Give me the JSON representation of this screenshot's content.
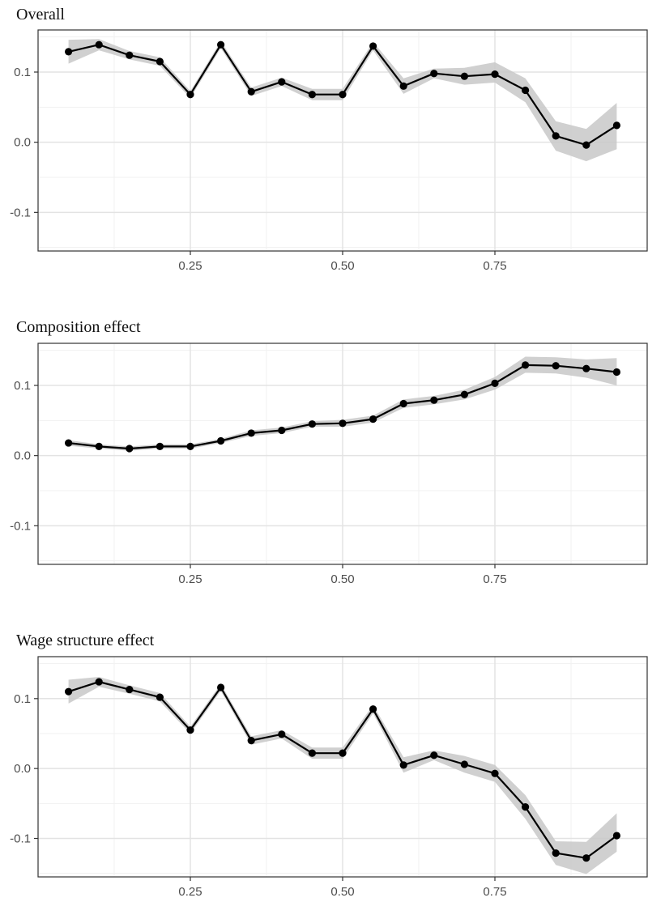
{
  "panels": [
    {
      "title": "Overall"
    },
    {
      "title": "Composition effect"
    },
    {
      "title": "Wage structure effect"
    }
  ],
  "colors": {
    "line": "#000000",
    "band": "#c8c8c8",
    "grid_major": "#e3e3e3",
    "grid_minor": "#f1f1f1",
    "axis_text": "#4d4d4d",
    "frame": "#333333"
  },
  "chart_data": [
    {
      "type": "line",
      "title": "Overall",
      "xlabel": "",
      "ylabel": "",
      "xlim": [
        0.0,
        1.0
      ],
      "ylim": [
        -0.155,
        0.16
      ],
      "x_ticks": [
        0.25,
        0.5,
        0.75
      ],
      "x_tick_labels": [
        "0.25",
        "0.50",
        "0.75"
      ],
      "y_ticks": [
        -0.1,
        0.0,
        0.1
      ],
      "y_tick_labels": [
        "-0.1",
        "0.0",
        "0.1"
      ],
      "grid": true,
      "confidence_band": true,
      "series": [
        {
          "x": [
            0.05,
            0.1,
            0.15,
            0.2,
            0.25,
            0.3,
            0.35,
            0.4,
            0.45,
            0.5,
            0.55,
            0.6,
            0.65,
            0.7,
            0.75,
            0.8,
            0.85,
            0.9,
            0.95
          ],
          "y": [
            0.129,
            0.139,
            0.124,
            0.115,
            0.068,
            0.139,
            0.072,
            0.086,
            0.068,
            0.068,
            0.137,
            0.08,
            0.098,
            0.094,
            0.097,
            0.074,
            0.009,
            -0.004,
            0.024
          ],
          "lower": [
            0.112,
            0.131,
            0.118,
            0.109,
            0.063,
            0.134,
            0.066,
            0.08,
            0.06,
            0.06,
            0.131,
            0.069,
            0.091,
            0.082,
            0.085,
            0.057,
            -0.012,
            -0.027,
            -0.01
          ],
          "upper": [
            0.146,
            0.147,
            0.13,
            0.121,
            0.073,
            0.144,
            0.078,
            0.092,
            0.076,
            0.076,
            0.143,
            0.091,
            0.105,
            0.106,
            0.114,
            0.091,
            0.03,
            0.019,
            0.056
          ]
        }
      ]
    },
    {
      "type": "line",
      "title": "Composition effect",
      "xlabel": "",
      "ylabel": "",
      "xlim": [
        0.0,
        1.0
      ],
      "ylim": [
        -0.155,
        0.16
      ],
      "x_ticks": [
        0.25,
        0.5,
        0.75
      ],
      "x_tick_labels": [
        "0.25",
        "0.50",
        "0.75"
      ],
      "y_ticks": [
        -0.1,
        0.0,
        0.1
      ],
      "y_tick_labels": [
        "-0.1",
        "0.0",
        "0.1"
      ],
      "grid": true,
      "confidence_band": true,
      "series": [
        {
          "x": [
            0.05,
            0.1,
            0.15,
            0.2,
            0.25,
            0.3,
            0.35,
            0.4,
            0.45,
            0.5,
            0.55,
            0.6,
            0.65,
            0.7,
            0.75,
            0.8,
            0.85,
            0.9,
            0.95
          ],
          "y": [
            0.018,
            0.013,
            0.01,
            0.013,
            0.013,
            0.021,
            0.032,
            0.036,
            0.045,
            0.046,
            0.052,
            0.074,
            0.079,
            0.087,
            0.103,
            0.129,
            0.128,
            0.124,
            0.119
          ],
          "lower": [
            0.014,
            0.01,
            0.007,
            0.01,
            0.01,
            0.018,
            0.028,
            0.032,
            0.041,
            0.041,
            0.047,
            0.068,
            0.073,
            0.08,
            0.094,
            0.118,
            0.117,
            0.111,
            0.1
          ],
          "upper": [
            0.022,
            0.016,
            0.013,
            0.016,
            0.016,
            0.024,
            0.036,
            0.04,
            0.049,
            0.051,
            0.057,
            0.08,
            0.085,
            0.094,
            0.112,
            0.141,
            0.14,
            0.137,
            0.139
          ]
        }
      ]
    },
    {
      "type": "line",
      "title": "Wage structure effect",
      "xlabel": "",
      "ylabel": "",
      "xlim": [
        0.0,
        1.0
      ],
      "ylim": [
        -0.155,
        0.16
      ],
      "x_ticks": [
        0.25,
        0.5,
        0.75
      ],
      "x_tick_labels": [
        "0.25",
        "0.50",
        "0.75"
      ],
      "y_ticks": [
        -0.1,
        0.0,
        0.1
      ],
      "y_tick_labels": [
        "-0.1",
        "0.0",
        "0.1"
      ],
      "grid": true,
      "confidence_band": true,
      "series": [
        {
          "x": [
            0.05,
            0.1,
            0.15,
            0.2,
            0.25,
            0.3,
            0.35,
            0.4,
            0.45,
            0.5,
            0.55,
            0.6,
            0.65,
            0.7,
            0.75,
            0.8,
            0.85,
            0.9,
            0.95
          ],
          "y": [
            0.11,
            0.124,
            0.113,
            0.102,
            0.055,
            0.116,
            0.04,
            0.049,
            0.022,
            0.022,
            0.085,
            0.005,
            0.019,
            0.006,
            -0.007,
            -0.055,
            -0.121,
            -0.128,
            -0.096
          ],
          "lower": [
            0.093,
            0.117,
            0.107,
            0.096,
            0.05,
            0.111,
            0.034,
            0.043,
            0.014,
            0.014,
            0.079,
            -0.006,
            0.012,
            -0.006,
            -0.019,
            -0.072,
            -0.138,
            -0.151,
            -0.119
          ],
          "upper": [
            0.127,
            0.131,
            0.119,
            0.108,
            0.06,
            0.121,
            0.046,
            0.055,
            0.03,
            0.03,
            0.091,
            0.016,
            0.026,
            0.018,
            0.005,
            -0.038,
            -0.104,
            -0.105,
            -0.064
          ]
        }
      ]
    }
  ]
}
